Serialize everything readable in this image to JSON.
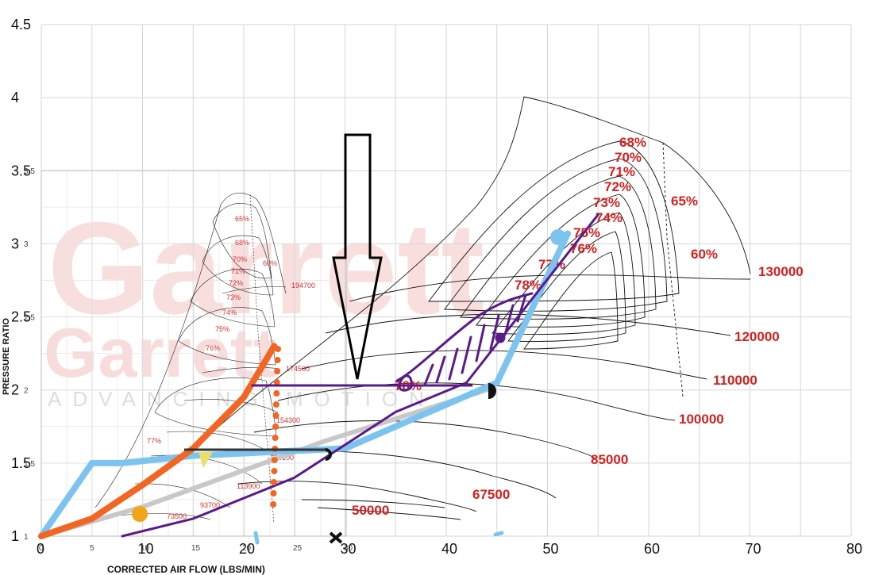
{
  "watermark": {
    "brand": "Garrett",
    "tagline": "ADVANCING MOTION"
  },
  "chart_data": [
    {
      "type": "line",
      "title": "",
      "xlabel": "CORRECTED AIR FLOW (LBS/MIN)",
      "ylabel": "",
      "xlim": [
        0,
        80
      ],
      "ylim": [
        1,
        4.5
      ],
      "x_ticks": [
        "0",
        "10",
        "20",
        "30",
        "40",
        "50",
        "60",
        "70",
        "80"
      ],
      "y_ticks": [
        "1",
        "1.5",
        "2",
        "2.5",
        "3",
        "3.5",
        "4",
        "4.5"
      ],
      "grid": true,
      "efficiency_labels": [
        "68%",
        "70%",
        "71%",
        "72%",
        "73%",
        "74%",
        "75%",
        "76%",
        "78%",
        "65%",
        "60%",
        "78%"
      ],
      "speed_lines": [
        {
          "rpm": "50000",
          "flow": [
            16,
            29
          ],
          "pr": [
            1.25,
            1.32
          ]
        },
        {
          "rpm": "67500",
          "flow": [
            16,
            41
          ],
          "pr": [
            1.35,
            1.45
          ]
        },
        {
          "rpm": "85000",
          "flow": [
            18,
            54
          ],
          "pr": [
            1.5,
            1.6
          ]
        },
        {
          "rpm": "100000",
          "flow": [
            21,
            62
          ],
          "pr": [
            1.85,
            1.85
          ]
        },
        {
          "rpm": "110000",
          "flow": [
            24,
            66
          ],
          "pr": [
            2.15,
            2.1
          ]
        },
        {
          "rpm": "120000",
          "flow": [
            26,
            68
          ],
          "pr": [
            2.45,
            2.3
          ]
        },
        {
          "rpm": "130000",
          "flow": [
            28,
            70
          ],
          "pr": [
            2.8,
            2.6
          ]
        }
      ]
    },
    {
      "type": "line",
      "title": "",
      "xlabel": "CORRECTED AIR FLOW (LBS/MIN)",
      "ylabel": "PRESSURE RATIO",
      "xlim": [
        0,
        30
      ],
      "ylim": [
        1,
        3.5
      ],
      "x_ticks": [
        "0",
        "5",
        "10",
        "15",
        "20",
        "25",
        "30"
      ],
      "y_ticks": [
        "1",
        "1.5",
        "2",
        "2.5",
        "3",
        "3.5"
      ],
      "grid": true,
      "efficiency_labels": [
        "65%",
        "68%",
        "70%",
        "60%",
        "71%",
        "72%",
        "73%",
        "74%",
        "75%",
        "76%",
        "77%"
      ],
      "speed_lines": [
        {
          "rpm": "73500",
          "flow": [
            9,
            12
          ],
          "pr": [
            1.15,
            1.15
          ]
        },
        {
          "rpm": "93700",
          "flow": [
            10,
            15
          ],
          "pr": [
            1.3,
            1.3
          ]
        },
        {
          "rpm": "113900",
          "flow": [
            12,
            21
          ],
          "pr": [
            1.4,
            1.38
          ]
        },
        {
          "rpm": "134100",
          "flow": [
            14,
            23
          ],
          "pr": [
            1.6,
            1.58
          ]
        },
        {
          "rpm": "154300",
          "flow": [
            17,
            24
          ],
          "pr": [
            1.85,
            1.85
          ]
        },
        {
          "rpm": "174500",
          "flow": [
            20,
            25
          ],
          "pr": [
            2.15,
            2.15
          ]
        },
        {
          "rpm": "194700",
          "flow": [
            23,
            26
          ],
          "pr": [
            2.85,
            2.75
          ]
        }
      ]
    }
  ],
  "overlays": {
    "light_blue": {
      "color": "#7cc4ef",
      "flow": [
        0,
        5,
        8,
        15,
        30,
        45,
        52
      ],
      "pr": [
        1.0,
        1.5,
        1.5,
        1.55,
        1.6,
        2.05,
        3.07
      ]
    },
    "orange": {
      "color": "#f26522",
      "flow": [
        0,
        5,
        10,
        15,
        20,
        23
      ],
      "pr": [
        1.0,
        1.12,
        1.35,
        1.6,
        1.95,
        2.3
      ]
    },
    "purple": {
      "color": "#5a1a8a",
      "flow": [
        8,
        15,
        25,
        35,
        42,
        55
      ],
      "pr": [
        1.0,
        1.12,
        1.4,
        1.85,
        2.05,
        3.2
      ]
    },
    "gray": {
      "color": "#c8c8c8",
      "flow": [
        0,
        10,
        28,
        44
      ],
      "pr": [
        1.0,
        1.2,
        1.65,
        2.0
      ]
    }
  }
}
